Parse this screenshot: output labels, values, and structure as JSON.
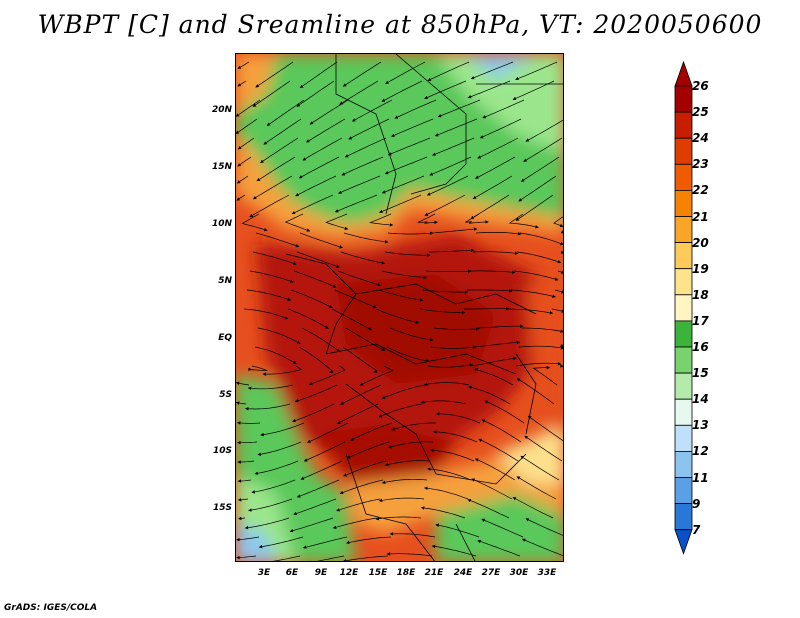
{
  "title": "WBPT [C] and Sreamline at 850hPa, VT: 2020050600",
  "credit": "GrADS: IGES/COLA",
  "map": {
    "lat_labels": [
      "20N",
      "15N",
      "10N",
      "5N",
      "EQ",
      "5S",
      "10S",
      "15S"
    ],
    "lon_labels": [
      "3E",
      "6E",
      "9E",
      "12E",
      "15E",
      "18E",
      "21E",
      "24E",
      "27E",
      "30E",
      "33E"
    ],
    "field": "Wet-bulb potential temperature (C) with streamlines at 850 hPa"
  },
  "colorbar": {
    "labels": [
      "26",
      "25",
      "24",
      "23",
      "22",
      "21",
      "20",
      "19",
      "18",
      "17",
      "16",
      "15",
      "14",
      "13",
      "12",
      "11",
      "9",
      "7"
    ],
    "colors": [
      "#a50000",
      "#c81e00",
      "#e13c00",
      "#f05a00",
      "#f58200",
      "#faa528",
      "#fccb5a",
      "#fde48c",
      "#fef5c0",
      "#3cb43c",
      "#78d26e",
      "#b4eaaa",
      "#e6f8f0",
      "#bfe0f8",
      "#8cc4f0",
      "#5aa0e6",
      "#2878d8",
      "#0a50c8"
    ]
  },
  "colors": {
    "hot": "#b4140a",
    "warm": "#e6501e",
    "mild": "#f5a03c",
    "pale": "#fce08c",
    "green": "#5ac85a",
    "lightgreen": "#9be68c",
    "blue": "#8cc8f0",
    "line": "#000000"
  }
}
